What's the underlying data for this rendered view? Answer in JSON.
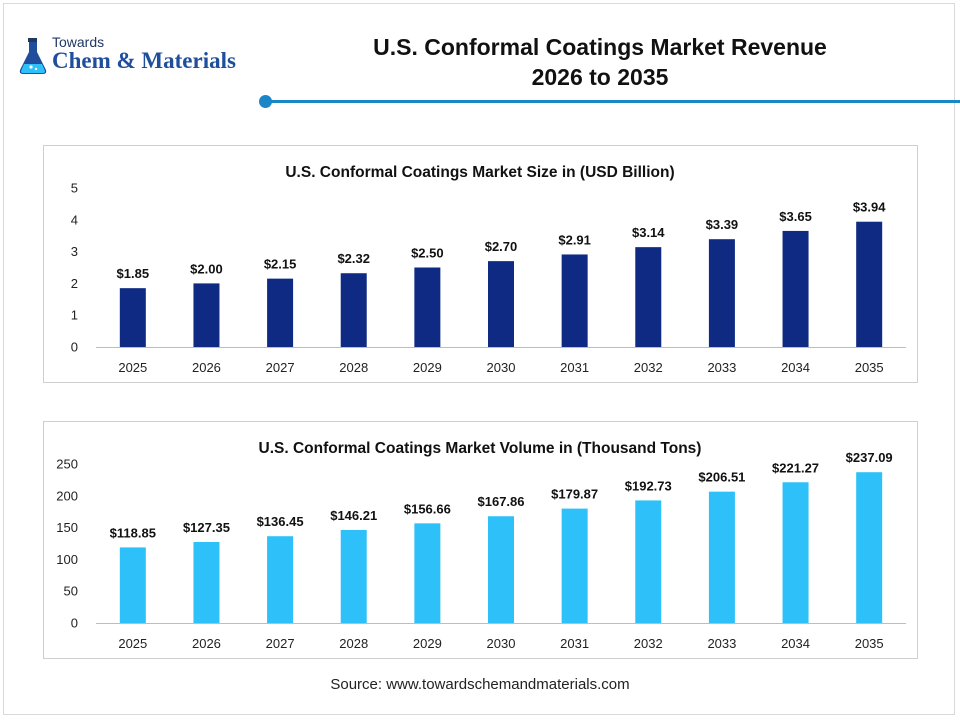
{
  "header": {
    "logo_top": "Towards",
    "logo_bottom": "Chem & Materials",
    "title_line1": "U.S. Conformal Coatings Market Revenue",
    "title_line2": "2026 to 2035"
  },
  "footer": {
    "source": "Source: www.towardschemandmaterials.com"
  },
  "colors": {
    "revenue_bar": "#0e2a82",
    "volume_bar": "#2ec0f9",
    "accent_rule": "#1a86c8"
  },
  "chart_data": [
    {
      "type": "bar",
      "title": "U.S. Conformal Coatings Market Size in (USD Billion)",
      "categories": [
        "2025",
        "2026",
        "2027",
        "2028",
        "2029",
        "2030",
        "2031",
        "2032",
        "2033",
        "2034",
        "2035"
      ],
      "values": [
        1.85,
        2.0,
        2.15,
        2.32,
        2.5,
        2.7,
        2.91,
        3.14,
        3.39,
        3.65,
        3.94
      ],
      "data_labels": [
        "$1.85",
        "$2.00",
        "$2.15",
        "$2.32",
        "$2.50",
        "$2.70",
        "$2.91",
        "$3.14",
        "$3.39",
        "$3.65",
        "$3.94"
      ],
      "ylim": [
        0,
        5
      ],
      "yticks": [
        0,
        1,
        2,
        3,
        4,
        5
      ],
      "grid": false,
      "legend": "none"
    },
    {
      "type": "bar",
      "title": "U.S. Conformal Coatings Market Volume in (Thousand Tons)",
      "categories": [
        "2025",
        "2026",
        "2027",
        "2028",
        "2029",
        "2030",
        "2031",
        "2032",
        "2033",
        "2034",
        "2035"
      ],
      "values": [
        118.85,
        127.35,
        136.45,
        146.21,
        156.66,
        167.86,
        179.87,
        192.73,
        206.51,
        221.27,
        237.09
      ],
      "data_labels": [
        "$118.85",
        "$127.35",
        "$136.45",
        "$146.21",
        "$156.66",
        "$167.86",
        "$179.87",
        "$192.73",
        "$206.51",
        "$221.27",
        "$237.09"
      ],
      "ylim": [
        0,
        250
      ],
      "yticks": [
        0,
        50,
        100,
        150,
        200,
        250
      ],
      "grid": false,
      "legend": "none"
    }
  ]
}
